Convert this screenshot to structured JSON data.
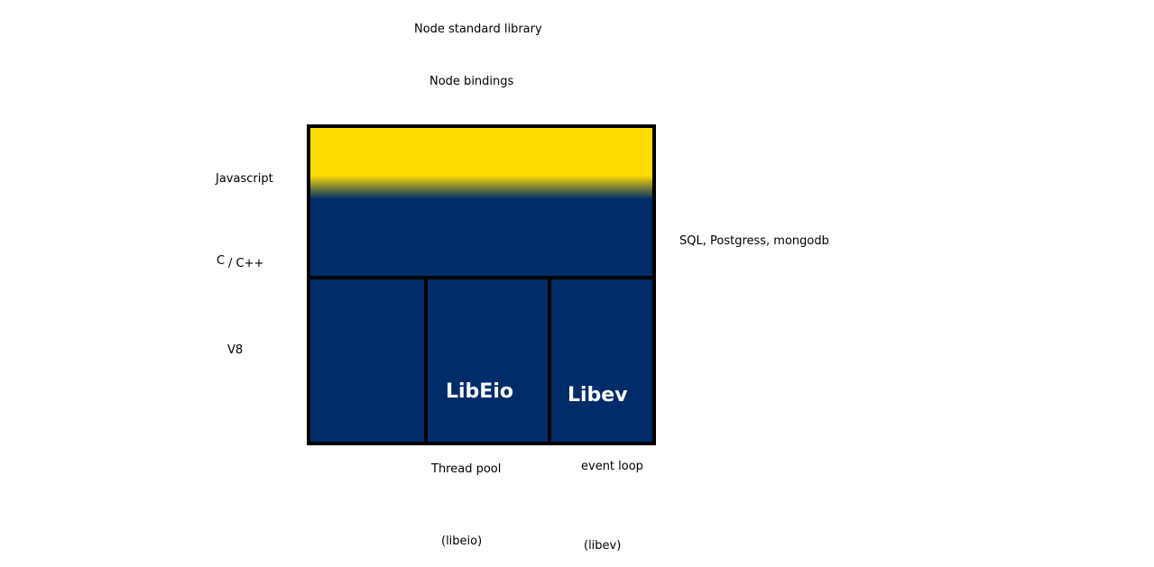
{
  "labels": {
    "node_stdlib": "Node standard library",
    "node_bindings": "Node bindings",
    "javascript": "Javascript",
    "c_part": "C",
    "cpp_part": "/ C++",
    "v8": "V8",
    "databases": "SQL, Postgress, mongodb",
    "thread_pool": "Thread pool",
    "event_loop": "event loop",
    "libeio_paren": "(libeio)",
    "libev_paren": "(libev)"
  },
  "blocks": {
    "libeio": "LibEio",
    "libev": "Libev"
  },
  "colors": {
    "yellow": "#ffdc00",
    "navy": "#002d6a",
    "border": "#000000"
  }
}
